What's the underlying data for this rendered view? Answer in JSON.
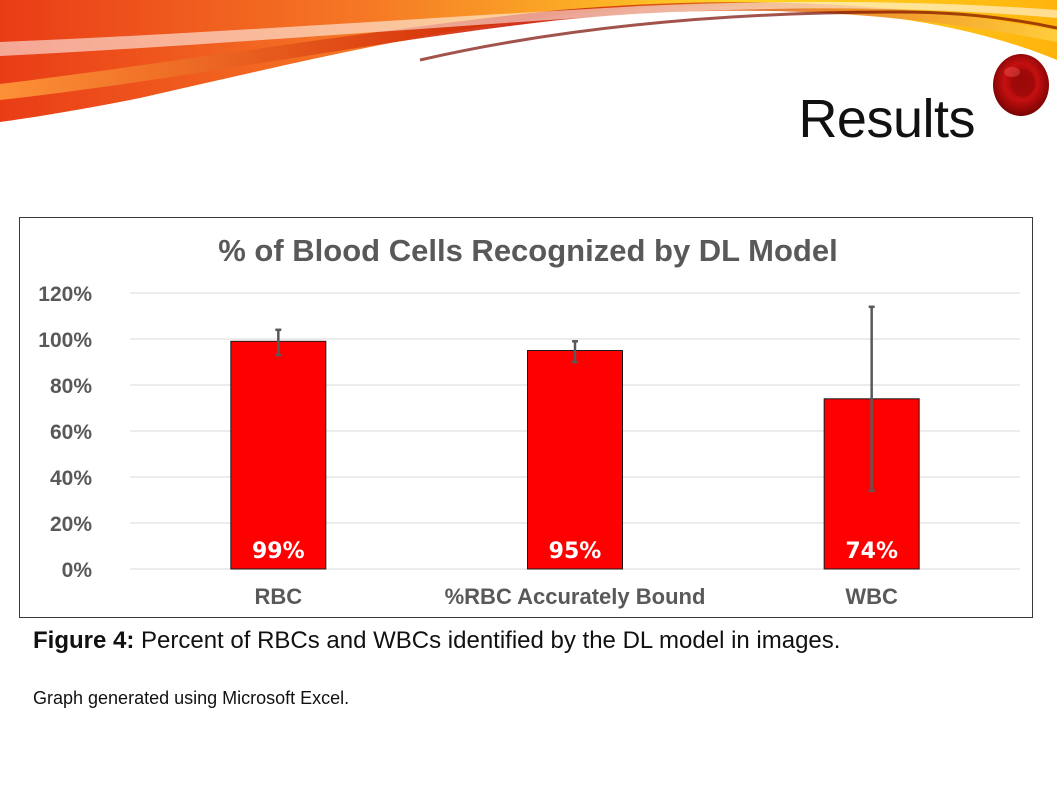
{
  "slide": {
    "title": "Results",
    "caption_bold": "Figure 4:",
    "caption_rest": " Percent of RBCs and WBCs identified by the DL model in images.",
    "note": "Graph generated using Microsoft Excel."
  },
  "chart_data": {
    "type": "bar",
    "title": "% of Blood Cells Recognized by DL Model",
    "xlabel": "",
    "ylabel": "",
    "categories": [
      "RBC",
      "%RBC Accurately Bound",
      "WBC"
    ],
    "values": [
      99,
      95,
      74
    ],
    "data_labels": [
      "99%",
      "95%",
      "74%"
    ],
    "error_bars": [
      {
        "low": 93,
        "high": 104
      },
      {
        "low": 90,
        "high": 99
      },
      {
        "low": 34,
        "high": 114
      }
    ],
    "ylim": [
      0,
      120
    ],
    "yticks": [
      0,
      20,
      40,
      60,
      80,
      100,
      120
    ],
    "ytick_labels": [
      "0%",
      "20%",
      "40%",
      "60%",
      "80%",
      "100%",
      "120%"
    ],
    "grid": true,
    "legend": "none",
    "bar_color": "#ff0000",
    "bar_outline_color": "#1a1a1a",
    "error_bar_color": "#595959",
    "gridline_color": "#d9d9d9",
    "title_color": "#595959",
    "tick_label_color": "#595959"
  }
}
